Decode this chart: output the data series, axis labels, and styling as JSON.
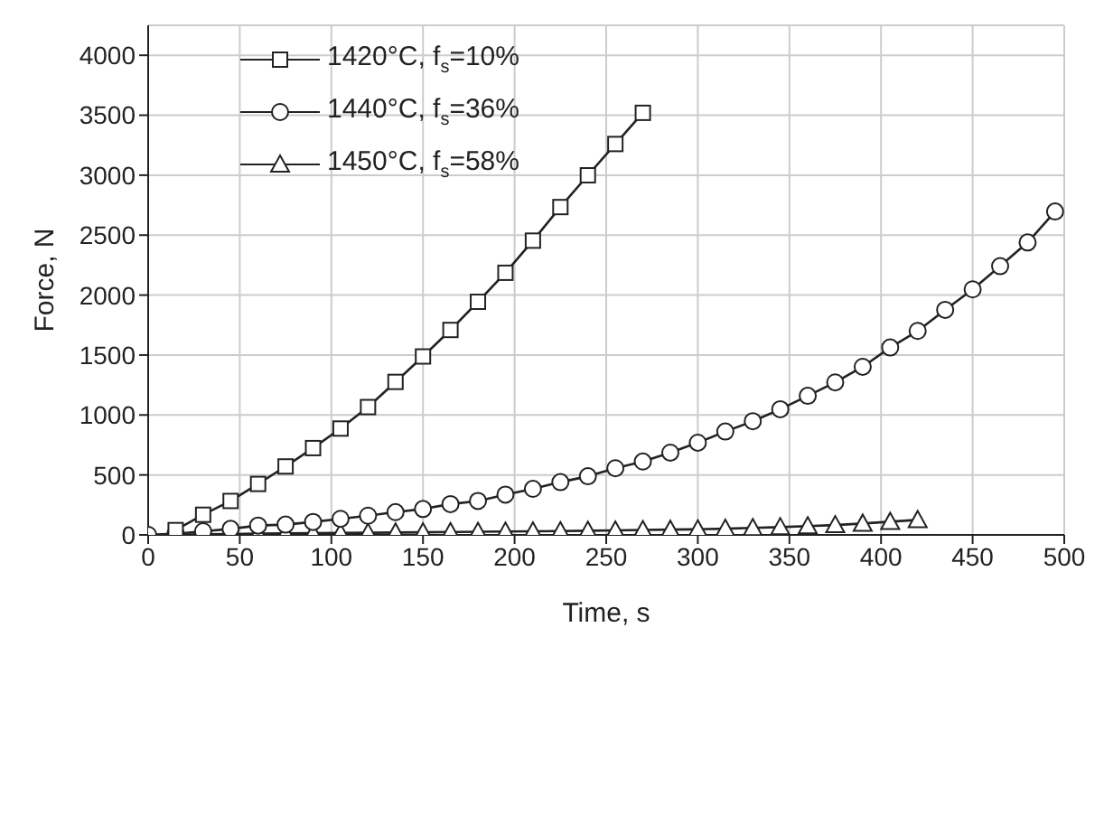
{
  "chart_data": {
    "type": "line",
    "xlabel": "Time, s",
    "ylabel": "Force, N",
    "xlim": [
      0,
      500
    ],
    "xticks": [
      0,
      50,
      100,
      150,
      200,
      250,
      300,
      350,
      400,
      450,
      500
    ],
    "ylim": [
      0,
      4250
    ],
    "yticks": [
      0,
      500,
      1000,
      1500,
      2000,
      2500,
      3000,
      3500,
      4000
    ],
    "grid": true,
    "legend": "top left",
    "line_style": "solid",
    "series": [
      {
        "name": "1420°C, f$_{s}$=10%",
        "color": "#222222",
        "marker": "square",
        "x": [
          15,
          30,
          45,
          60,
          75,
          90,
          105,
          120,
          135,
          150,
          165,
          180,
          195,
          210,
          225,
          240,
          255,
          270
        ],
        "values": [
          40,
          168,
          283,
          425,
          571,
          724,
          887,
          1066,
          1276,
          1488,
          1709,
          1944,
          2186,
          2454,
          2734,
          2999,
          3260,
          3520
        ]
      },
      {
        "name": "1440°C, f$_{s}$=36%",
        "color": "#222222",
        "marker": "circle",
        "x": [
          0,
          15,
          30,
          45,
          60,
          75,
          90,
          105,
          120,
          135,
          150,
          165,
          180,
          195,
          210,
          225,
          240,
          255,
          270,
          285,
          300,
          315,
          330,
          345,
          360,
          375,
          390,
          405,
          420,
          435,
          450,
          465,
          480,
          495
        ],
        "values": [
          0,
          10,
          30,
          50,
          78,
          86,
          108,
          134,
          160,
          190,
          216,
          257,
          283,
          336,
          384,
          440,
          489,
          556,
          612,
          686,
          769,
          862,
          948,
          1048,
          1160,
          1272,
          1402,
          1563,
          1701,
          1877,
          2048,
          2241,
          2439,
          2697
        ]
      },
      {
        "name": "1450°C, f$_{s}$=58%",
        "color": "#222222",
        "marker": "triangle",
        "x": [
          0,
          15,
          30,
          45,
          60,
          75,
          90,
          105,
          120,
          135,
          150,
          165,
          180,
          195,
          210,
          225,
          240,
          255,
          270,
          285,
          300,
          315,
          330,
          345,
          360,
          375,
          390,
          405,
          420
        ],
        "values": [
          0,
          2,
          5,
          8,
          10,
          12,
          14,
          16,
          18,
          20,
          22,
          24,
          26,
          28,
          30,
          32,
          35,
          38,
          41,
          44,
          47,
          52,
          58,
          65,
          73,
          82,
          95,
          110,
          125
        ]
      }
    ]
  }
}
